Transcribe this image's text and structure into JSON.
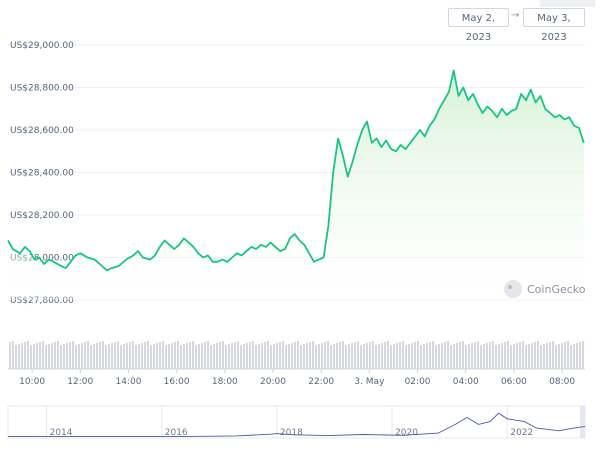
{
  "date_range": {
    "from": "May 2, 2023",
    "to": "May 3, 2023",
    "arrow": "→"
  },
  "watermark": "CoinGecko",
  "colors": {
    "line": "#16c784",
    "fill": "#e8f7e8",
    "grid": "#eef0f3",
    "volume": "#d5d8de",
    "navigator": "#4b59a8"
  },
  "chart_data": {
    "type": "area",
    "y_ticks": [
      "US$29,000.00",
      "US$28,800.00",
      "US$28,600.00",
      "US$28,400.00",
      "US$28,200.00",
      "US$28,000.00",
      "US$27,800.00"
    ],
    "ylim": [
      27800,
      29000
    ],
    "x_ticks": [
      "10:00",
      "12:00",
      "14:00",
      "16:00",
      "18:00",
      "20:00",
      "22:00",
      "3. May",
      "02:00",
      "04:00",
      "06:00",
      "08:00"
    ],
    "x_tick_hours": [
      10,
      12,
      14,
      16,
      18,
      20,
      22,
      24,
      26,
      28,
      30,
      32
    ],
    "series": [
      {
        "points": [
          [
            9.0,
            28080
          ],
          [
            9.2,
            28040
          ],
          [
            9.5,
            28020
          ],
          [
            9.7,
            28050
          ],
          [
            9.9,
            28030
          ],
          [
            10.1,
            27990
          ],
          [
            10.3,
            28000
          ],
          [
            10.5,
            27970
          ],
          [
            10.7,
            27990
          ],
          [
            10.9,
            27980
          ],
          [
            11.2,
            27960
          ],
          [
            11.4,
            27950
          ],
          [
            11.6,
            27980
          ],
          [
            11.8,
            28010
          ],
          [
            12.0,
            28020
          ],
          [
            12.3,
            28000
          ],
          [
            12.6,
            27990
          ],
          [
            12.9,
            27960
          ],
          [
            13.1,
            27940
          ],
          [
            13.3,
            27950
          ],
          [
            13.6,
            27960
          ],
          [
            13.9,
            27990
          ],
          [
            14.2,
            28010
          ],
          [
            14.4,
            28030
          ],
          [
            14.6,
            28000
          ],
          [
            14.9,
            27990
          ],
          [
            15.1,
            28010
          ],
          [
            15.3,
            28050
          ],
          [
            15.5,
            28080
          ],
          [
            15.7,
            28060
          ],
          [
            15.9,
            28040
          ],
          [
            16.1,
            28060
          ],
          [
            16.3,
            28090
          ],
          [
            16.5,
            28070
          ],
          [
            16.7,
            28050
          ],
          [
            16.9,
            28020
          ],
          [
            17.1,
            28000
          ],
          [
            17.3,
            28010
          ],
          [
            17.5,
            27980
          ],
          [
            17.7,
            27980
          ],
          [
            17.9,
            27990
          ],
          [
            18.1,
            27980
          ],
          [
            18.3,
            28000
          ],
          [
            18.5,
            28020
          ],
          [
            18.7,
            28010
          ],
          [
            18.9,
            28030
          ],
          [
            19.1,
            28050
          ],
          [
            19.3,
            28040
          ],
          [
            19.5,
            28060
          ],
          [
            19.7,
            28050
          ],
          [
            19.9,
            28070
          ],
          [
            20.1,
            28050
          ],
          [
            20.3,
            28030
          ],
          [
            20.5,
            28040
          ],
          [
            20.7,
            28090
          ],
          [
            20.9,
            28110
          ],
          [
            21.1,
            28080
          ],
          [
            21.3,
            28060
          ],
          [
            21.5,
            28020
          ],
          [
            21.7,
            27980
          ],
          [
            21.9,
            27990
          ],
          [
            22.1,
            28000
          ],
          [
            22.3,
            28150
          ],
          [
            22.5,
            28400
          ],
          [
            22.7,
            28560
          ],
          [
            22.9,
            28480
          ],
          [
            23.1,
            28380
          ],
          [
            23.3,
            28450
          ],
          [
            23.5,
            28530
          ],
          [
            23.7,
            28600
          ],
          [
            23.9,
            28640
          ],
          [
            24.1,
            28540
          ],
          [
            24.3,
            28560
          ],
          [
            24.5,
            28520
          ],
          [
            24.7,
            28550
          ],
          [
            24.9,
            28510
          ],
          [
            25.1,
            28500
          ],
          [
            25.3,
            28530
          ],
          [
            25.5,
            28510
          ],
          [
            25.7,
            28540
          ],
          [
            25.9,
            28570
          ],
          [
            26.1,
            28600
          ],
          [
            26.3,
            28570
          ],
          [
            26.5,
            28620
          ],
          [
            26.7,
            28650
          ],
          [
            26.9,
            28700
          ],
          [
            27.1,
            28740
          ],
          [
            27.3,
            28780
          ],
          [
            27.5,
            28880
          ],
          [
            27.7,
            28760
          ],
          [
            27.9,
            28800
          ],
          [
            28.1,
            28740
          ],
          [
            28.3,
            28770
          ],
          [
            28.5,
            28720
          ],
          [
            28.7,
            28680
          ],
          [
            28.9,
            28710
          ],
          [
            29.1,
            28690
          ],
          [
            29.3,
            28660
          ],
          [
            29.5,
            28700
          ],
          [
            29.7,
            28670
          ],
          [
            29.9,
            28690
          ],
          [
            30.1,
            28700
          ],
          [
            30.3,
            28770
          ],
          [
            30.5,
            28740
          ],
          [
            30.7,
            28790
          ],
          [
            30.9,
            28730
          ],
          [
            31.1,
            28760
          ],
          [
            31.3,
            28700
          ],
          [
            31.5,
            28680
          ],
          [
            31.7,
            28660
          ],
          [
            31.9,
            28670
          ],
          [
            32.1,
            28650
          ],
          [
            32.3,
            28660
          ],
          [
            32.5,
            28620
          ],
          [
            32.7,
            28610
          ],
          [
            32.9,
            28540
          ]
        ]
      }
    ],
    "navigator": {
      "x_ticks": [
        "2014",
        "2016",
        "2018",
        "2020",
        "2022"
      ],
      "x_tick_years": [
        2014,
        2016,
        2018,
        2020,
        2022
      ]
    }
  }
}
